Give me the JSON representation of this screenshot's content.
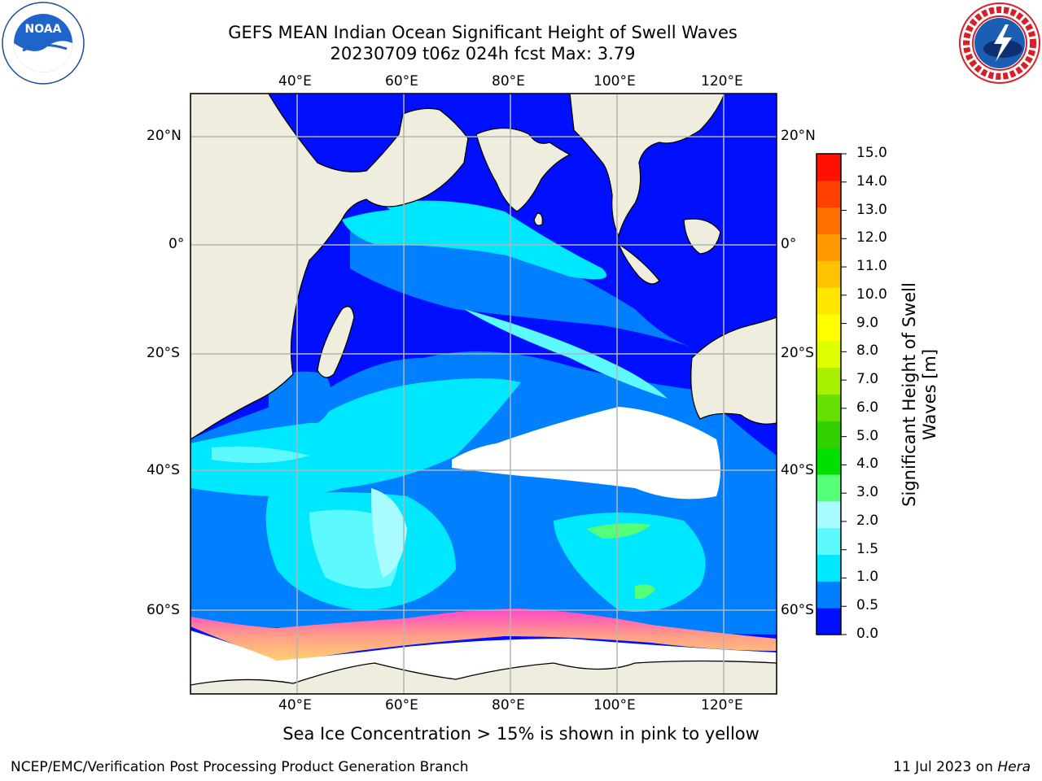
{
  "header": {
    "title_line1": "GEFS MEAN Indian Ocean Significant Height of Swell Waves",
    "title_line2": "20230709 t06z 024h fcst   Max: 3.79"
  },
  "logos": {
    "left": "noaa-logo",
    "right": "national-weather-service-logo"
  },
  "map": {
    "lon_labels_top": [
      "40°E",
      "60°E",
      "80°E",
      "100°E",
      "120°E"
    ],
    "lon_labels_bottom": [
      "40°E",
      "60°E",
      "80°E",
      "100°E",
      "120°E"
    ],
    "lat_labels_left": [
      "20°N",
      "0°",
      "20°S",
      "40°S",
      "60°S"
    ],
    "lat_labels_right": [
      "20°N",
      "0°",
      "20°S",
      "40°S",
      "60°S"
    ],
    "colors": {
      "land": "#efedde",
      "ice": "#ffffff",
      "grid": "#b4b4b4"
    }
  },
  "colorbar": {
    "label": "Significant Height of Swell Waves [m]",
    "ticks": [
      "15.0",
      "14.0",
      "13.0",
      "12.0",
      "11.0",
      "10.0",
      "9.0",
      "8.0",
      "7.0",
      "6.0",
      "5.0",
      "4.0",
      "3.0",
      "2.0",
      "1.5",
      "1.0",
      "0.5",
      "0.0"
    ],
    "colors_bottom_to_top": [
      "#0010ff",
      "#0080ff",
      "#00e8ff",
      "#5cfaff",
      "#a8fcff",
      "#55ff77",
      "#00e000",
      "#33d000",
      "#66e000",
      "#a8f000",
      "#ddff00",
      "#ffff00",
      "#ffe600",
      "#ffc200",
      "#ff9a00",
      "#ff7000",
      "#ff4000",
      "#ff1000"
    ]
  },
  "caption": "Sea Ice Concentration > 15% is shown in pink to yellow",
  "footer": {
    "left": "NCEP/EMC/Verification Post Processing Product Generation Branch",
    "right_date": "11 Jul 2023 on ",
    "right_host": "Hera"
  }
}
